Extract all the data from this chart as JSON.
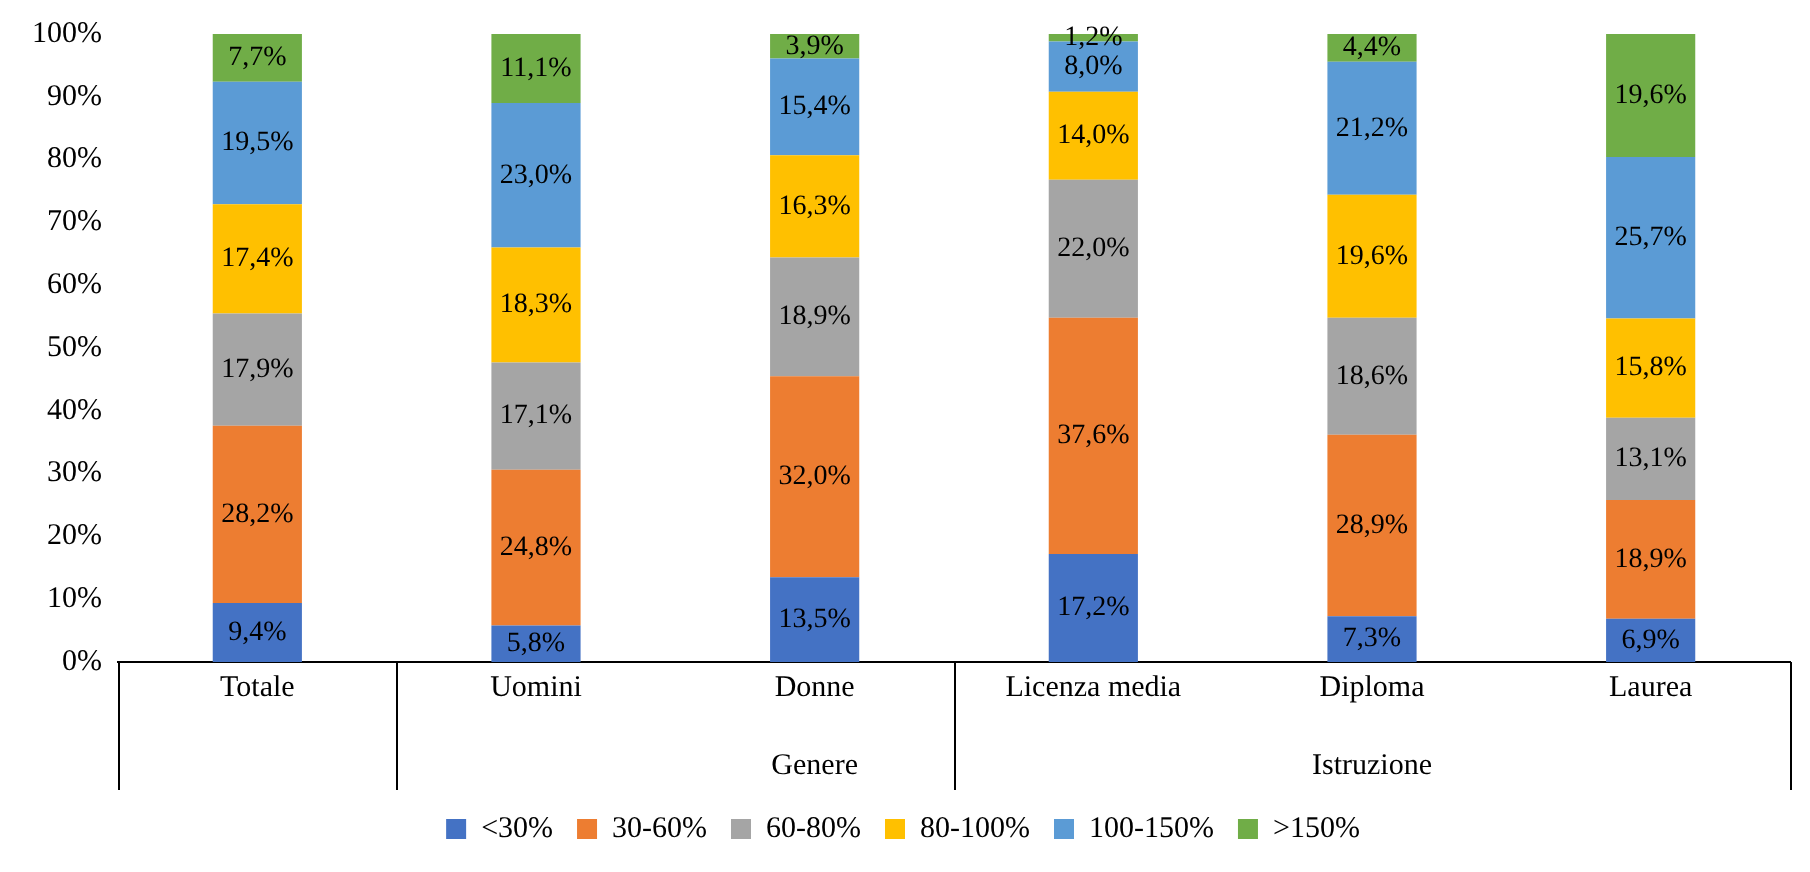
{
  "chart_data": {
    "type": "bar",
    "stacked": true,
    "categories": [
      "Totale",
      "Uomini",
      "Donne",
      "Licenza media",
      "Diploma",
      "Laurea"
    ],
    "series": [
      {
        "name": "<30%",
        "color": "#4472c4",
        "values": [
          9.4,
          5.8,
          13.5,
          17.2,
          7.3,
          6.9
        ],
        "value_labels": [
          "9,4%",
          "5,8%",
          "13,5%",
          "17,2%",
          "7,3%",
          "6,9%"
        ]
      },
      {
        "name": "30-60%",
        "color": "#ed7d31",
        "values": [
          28.2,
          24.8,
          32.0,
          37.6,
          28.9,
          18.9
        ],
        "value_labels": [
          "28,2%",
          "24,8%",
          "32,0%",
          "37,6%",
          "28,9%",
          "18,9%"
        ]
      },
      {
        "name": "60-80%",
        "color": "#a5a5a5",
        "values": [
          17.9,
          17.1,
          18.9,
          22.0,
          18.6,
          13.1
        ],
        "value_labels": [
          "17,9%",
          "17,1%",
          "18,9%",
          "22,0%",
          "18,6%",
          "13,1%"
        ]
      },
      {
        "name": "80-100%",
        "color": "#ffc000",
        "values": [
          17.4,
          18.3,
          16.3,
          14.0,
          19.6,
          15.8
        ],
        "value_labels": [
          "17,4%",
          "18,3%",
          "16,3%",
          "14,0%",
          "19,6%",
          "15,8%"
        ]
      },
      {
        "name": "100-150%",
        "color": "#5b9bd5",
        "values": [
          19.5,
          23.0,
          15.4,
          8.0,
          21.2,
          25.7
        ],
        "value_labels": [
          "19,5%",
          "23,0%",
          "15,4%",
          "8,0%",
          "21,2%",
          "25,7%"
        ]
      },
      {
        "name": ">150%",
        "color": "#70ad47",
        "values": [
          7.7,
          11.1,
          3.9,
          1.2,
          4.4,
          19.6
        ],
        "value_labels": [
          "7,7%",
          "11,1%",
          "3,9%",
          "1,2%",
          "4,4%",
          "19,6%"
        ]
      }
    ],
    "ylim": [
      0,
      100
    ],
    "yticks": [
      {
        "value": 0,
        "label": "0%"
      },
      {
        "value": 10,
        "label": "10%"
      },
      {
        "value": 20,
        "label": "20%"
      },
      {
        "value": 30,
        "label": "30%"
      },
      {
        "value": 40,
        "label": "40%"
      },
      {
        "value": 50,
        "label": "50%"
      },
      {
        "value": 60,
        "label": "60%"
      },
      {
        "value": 70,
        "label": "70%"
      },
      {
        "value": 80,
        "label": "80%"
      },
      {
        "value": 90,
        "label": "90%"
      },
      {
        "value": 100,
        "label": "100%"
      }
    ],
    "annotations": [
      "Genere",
      "Istruzione"
    ],
    "grid": false,
    "legend": "bottom"
  }
}
